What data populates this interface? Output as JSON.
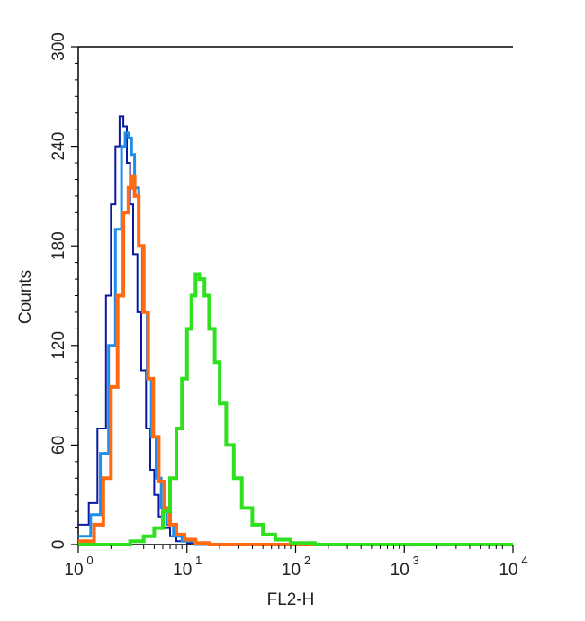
{
  "chart_data": {
    "type": "line",
    "title": "",
    "xlabel": "FL2-H",
    "ylabel": "Counts",
    "x_scale": "log",
    "xlim": [
      1,
      10000
    ],
    "ylim": [
      0,
      300
    ],
    "x_ticks": [
      {
        "base": "10",
        "exp": "0",
        "value": 1
      },
      {
        "base": "10",
        "exp": "1",
        "value": 10
      },
      {
        "base": "10",
        "exp": "2",
        "value": 100
      },
      {
        "base": "10",
        "exp": "3",
        "value": 1000
      },
      {
        "base": "10",
        "exp": "4",
        "value": 10000
      }
    ],
    "y_ticks": [
      "0",
      "60",
      "120",
      "180",
      "240",
      "300"
    ],
    "grid": false,
    "series": [
      {
        "color": "#0a1aa0",
        "stroke": 2,
        "x": [
          1.0,
          1.25,
          1.5,
          1.8,
          2.0,
          2.2,
          2.4,
          2.6,
          2.8,
          3.0,
          3.2,
          3.5,
          3.8,
          4.2,
          4.6,
          5.0,
          5.5,
          6.0,
          7.0,
          8.0,
          10.0,
          13.0,
          20.0,
          50.0,
          10000.0
        ],
        "y": [
          12,
          25,
          70,
          150,
          205,
          240,
          258,
          252,
          230,
          205,
          175,
          140,
          105,
          70,
          45,
          30,
          17,
          10,
          5,
          2,
          1,
          0,
          0,
          0,
          0
        ]
      },
      {
        "color": "#1e8ee8",
        "stroke": 3,
        "x": [
          1.0,
          1.3,
          1.6,
          1.9,
          2.2,
          2.5,
          2.7,
          2.9,
          3.1,
          3.3,
          3.6,
          3.9,
          4.3,
          4.7,
          5.2,
          5.8,
          6.5,
          7.5,
          9.0,
          12.0,
          20.0,
          10000.0
        ],
        "y": [
          5,
          18,
          55,
          120,
          190,
          240,
          248,
          245,
          235,
          215,
          180,
          140,
          100,
          65,
          40,
          22,
          12,
          5,
          2,
          0,
          0,
          0
        ]
      },
      {
        "color": "#ff6a12",
        "stroke": 4,
        "x": [
          1.0,
          1.4,
          1.7,
          2.0,
          2.3,
          2.6,
          2.9,
          3.1,
          3.3,
          3.6,
          4.0,
          4.4,
          4.9,
          5.5,
          6.2,
          7.0,
          8.0,
          9.5,
          12.0,
          16.0,
          25.0,
          60.0,
          10000.0
        ],
        "y": [
          2,
          12,
          40,
          95,
          150,
          200,
          215,
          222,
          210,
          180,
          140,
          100,
          65,
          38,
          22,
          12,
          6,
          3,
          1,
          0,
          0,
          0,
          0
        ]
      },
      {
        "color": "#2ee01e",
        "stroke": 4,
        "x": [
          1.0,
          3.0,
          4.0,
          5.0,
          6.0,
          7.0,
          8.0,
          9.0,
          10.0,
          11.0,
          12.0,
          13.0,
          14.5,
          16.0,
          18.0,
          20.0,
          23.0,
          27.0,
          32.0,
          40.0,
          50.0,
          65.0,
          90.0,
          150.0,
          10000.0
        ],
        "y": [
          0,
          2,
          5,
          10,
          20,
          40,
          70,
          100,
          130,
          150,
          163,
          160,
          150,
          130,
          110,
          85,
          60,
          40,
          22,
          12,
          6,
          3,
          1,
          0,
          0
        ]
      }
    ]
  }
}
